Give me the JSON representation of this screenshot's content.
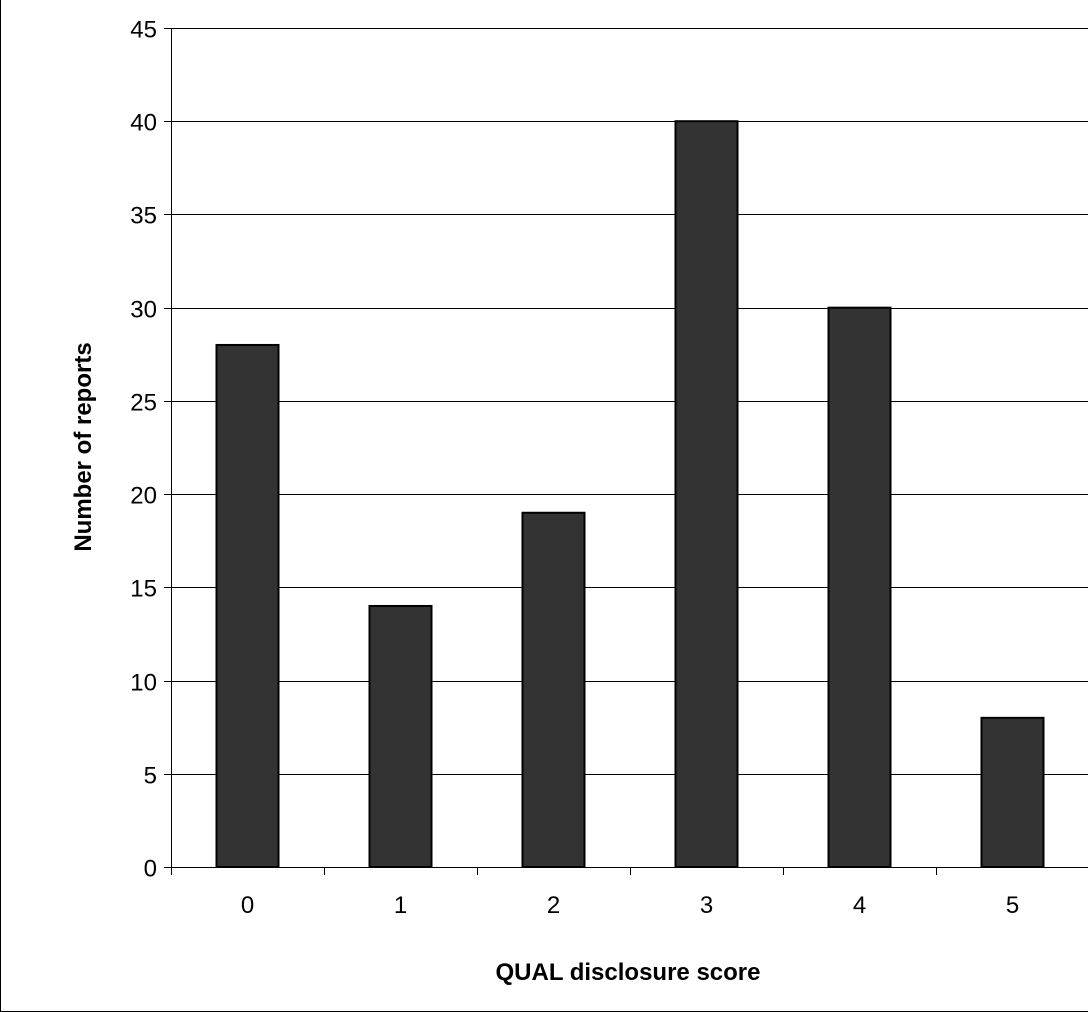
{
  "chart_data": {
    "type": "bar",
    "title": "",
    "xlabel": "QUAL disclosure score",
    "ylabel": "Number of reports",
    "categories": [
      "0",
      "1",
      "2",
      "3",
      "4",
      "5"
    ],
    "values": [
      28,
      14,
      19,
      40,
      30,
      8
    ],
    "ylim": [
      0,
      45
    ],
    "yticks": [
      0,
      5,
      10,
      15,
      20,
      25,
      30,
      35,
      40,
      45
    ],
    "grid": true,
    "legend": "none",
    "colors": {
      "bar_fill": "#333333",
      "bar_stroke": "#000000",
      "grid": "#000000",
      "axis": "#000000",
      "frame": "#000000"
    }
  }
}
